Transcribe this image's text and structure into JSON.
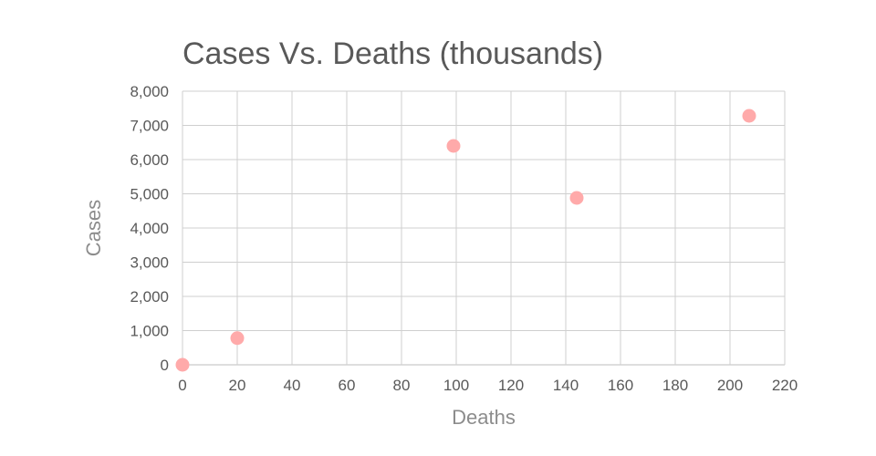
{
  "chart_data": {
    "type": "scatter",
    "title": "Cases Vs. Deaths (thousands)",
    "xlabel": "Deaths",
    "ylabel": "Cases",
    "xlim": [
      0,
      220
    ],
    "ylim": [
      0,
      8000
    ],
    "x_ticks": [
      0,
      20,
      40,
      60,
      80,
      100,
      120,
      140,
      160,
      180,
      200,
      220
    ],
    "x_tick_labels": [
      "0",
      "20",
      "40",
      "60",
      "80",
      "100",
      "120",
      "140",
      "160",
      "180",
      "200",
      "220"
    ],
    "y_ticks": [
      0,
      1000,
      2000,
      3000,
      4000,
      5000,
      6000,
      7000,
      8000
    ],
    "y_tick_labels": [
      "0",
      "1,000",
      "2,000",
      "3,000",
      "4,000",
      "5,000",
      "6,000",
      "7,000",
      "8,000"
    ],
    "grid": true,
    "legend": "none",
    "point_color": "#ffaaaa",
    "points": [
      {
        "x": 0,
        "y": 0
      },
      {
        "x": 20,
        "y": 780
      },
      {
        "x": 99,
        "y": 6400
      },
      {
        "x": 144,
        "y": 4880
      },
      {
        "x": 207,
        "y": 7280
      }
    ]
  }
}
